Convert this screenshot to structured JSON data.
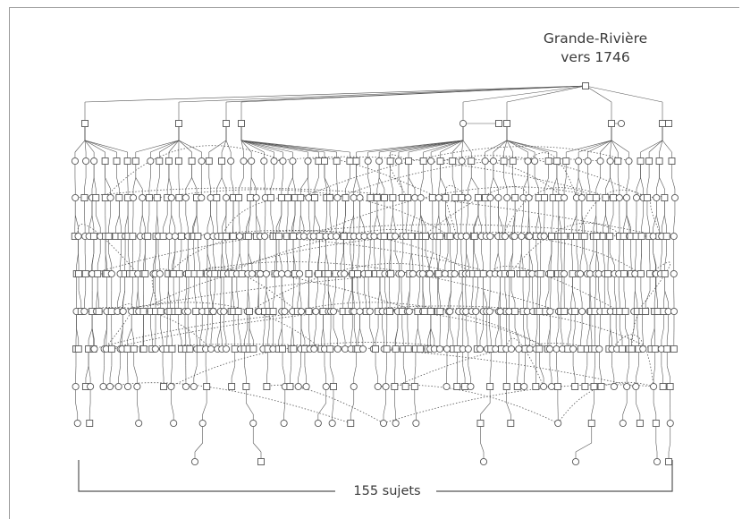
{
  "title": {
    "line1": "Grande-Rivière",
    "line2": "vers 1746"
  },
  "bracket": {
    "label": "155 sujets"
  },
  "colors": {
    "ink": "#555555",
    "frame": "#9a9a9a",
    "text": "#3a3a3a"
  },
  "generations": [
    {
      "marks": "square"
    },
    {
      "marks": "mixed"
    },
    {
      "marks": "mixed"
    },
    {
      "marks": "mixed"
    },
    {
      "marks": "mixed"
    },
    {
      "marks": "mixed"
    },
    {
      "marks": "mixed"
    },
    {
      "marks": "mixed"
    },
    {
      "marks": "mixed"
    },
    {
      "marks": "mixed"
    },
    {
      "marks": "mixed"
    }
  ]
}
